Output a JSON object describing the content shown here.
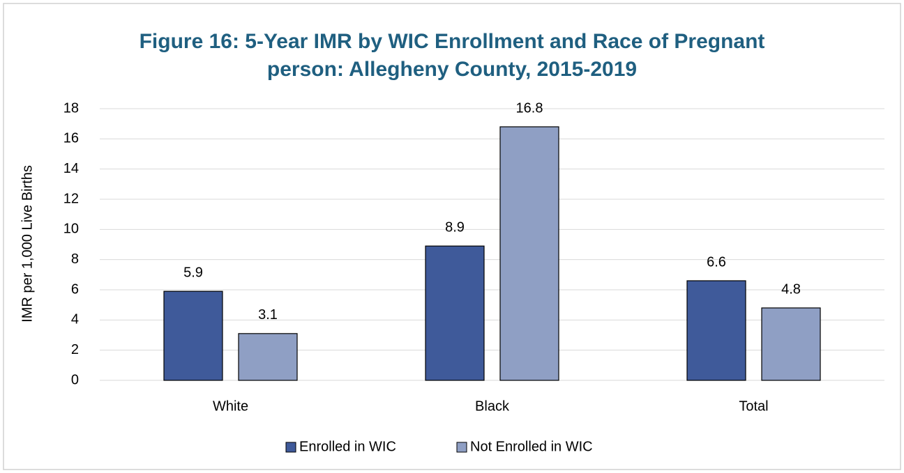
{
  "chart_data": {
    "type": "bar",
    "title": "Figure 16: 5-Year IMR by WIC Enrollment and Race of Pregnant person: Allegheny County, 2015-2019",
    "y_label": "IMR per 1,000 Live Births",
    "categories": [
      "White",
      "Black",
      "Total"
    ],
    "series": [
      {
        "name": "Enrolled in WIC",
        "color": "#3f5a9a",
        "values": [
          5.9,
          8.9,
          6.6
        ]
      },
      {
        "name": "Not Enrolled in WIC",
        "color": "#8f9fc4",
        "values": [
          3.1,
          16.8,
          4.8
        ]
      }
    ],
    "ylim": [
      0,
      18
    ],
    "yticks": [
      0,
      2,
      4,
      6,
      8,
      10,
      12,
      14,
      16,
      18
    ],
    "grid": true,
    "legend": "bottom"
  }
}
